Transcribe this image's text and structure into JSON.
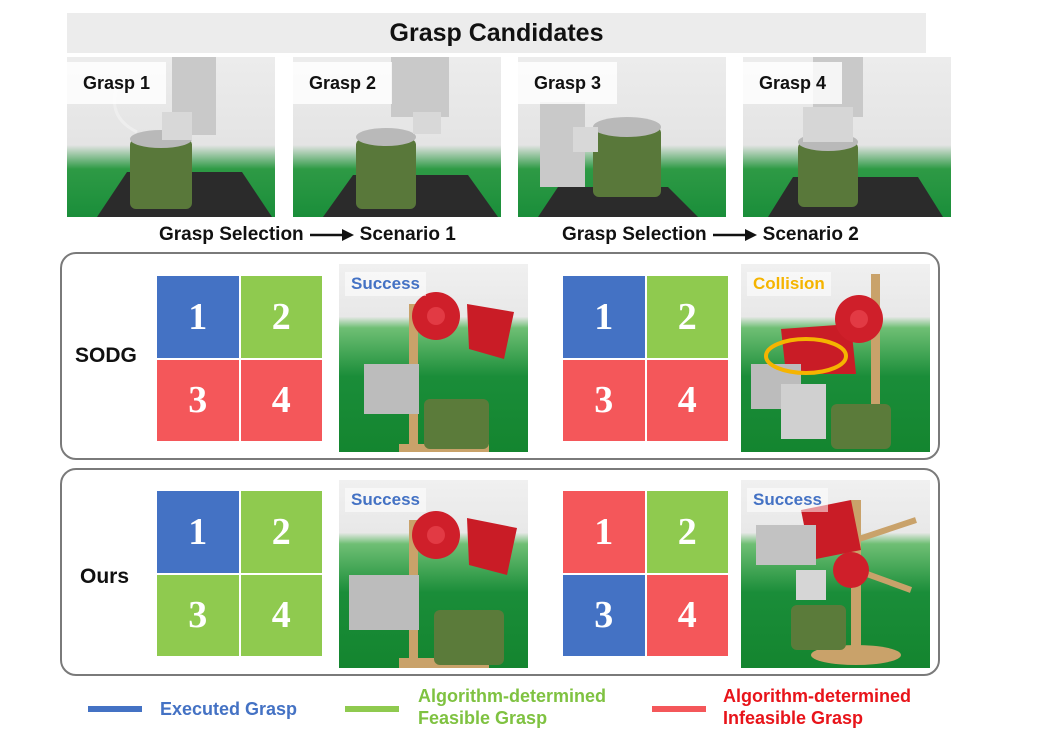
{
  "header": {
    "title": "Grasp Candidates"
  },
  "candidates": [
    {
      "label": "Grasp 1"
    },
    {
      "label": "Grasp 2"
    },
    {
      "label": "Grasp 3"
    },
    {
      "label": "Grasp 4"
    }
  ],
  "scenarios": [
    {
      "selection": "Grasp Selection",
      "target": "Scenario 1"
    },
    {
      "selection": "Grasp Selection",
      "target": "Scenario 2"
    }
  ],
  "methods": [
    {
      "name": "SODG",
      "scenario1": {
        "cells": [
          "1",
          "2",
          "3",
          "4"
        ],
        "cell_types": [
          "executed",
          "feasible",
          "infeasible",
          "infeasible"
        ],
        "result": "Success"
      },
      "scenario2": {
        "cells": [
          "1",
          "2",
          "3",
          "4"
        ],
        "cell_types": [
          "executed",
          "feasible",
          "infeasible",
          "infeasible"
        ],
        "result": "Collision"
      }
    },
    {
      "name": "Ours",
      "scenario1": {
        "cells": [
          "1",
          "2",
          "3",
          "4"
        ],
        "cell_types": [
          "executed",
          "feasible",
          "feasible",
          "feasible"
        ],
        "result": "Success"
      },
      "scenario2": {
        "cells": [
          "1",
          "2",
          "3",
          "4"
        ],
        "cell_types": [
          "infeasible",
          "feasible",
          "executed",
          "infeasible"
        ],
        "result": "Success"
      }
    }
  ],
  "legend": [
    {
      "type": "executed",
      "line1": "Executed Grasp",
      "line2": ""
    },
    {
      "type": "feasible",
      "line1": "Algorithm-determined",
      "line2": "Feasible Grasp"
    },
    {
      "type": "infeasible",
      "line1": "Algorithm-determined",
      "line2": "Infeasible Grasp"
    }
  ],
  "colors": {
    "executed": "#4472c4",
    "feasible": "#8fca4f",
    "infeasible": "#f4575a",
    "success_text": "#4472c4",
    "collision_text": "#f5b400",
    "legend_executed_text": "#4472c4",
    "legend_feasible_text": "#7fc241",
    "legend_infeasible_text": "#e8141a",
    "collision_ring": "#f5b400"
  }
}
